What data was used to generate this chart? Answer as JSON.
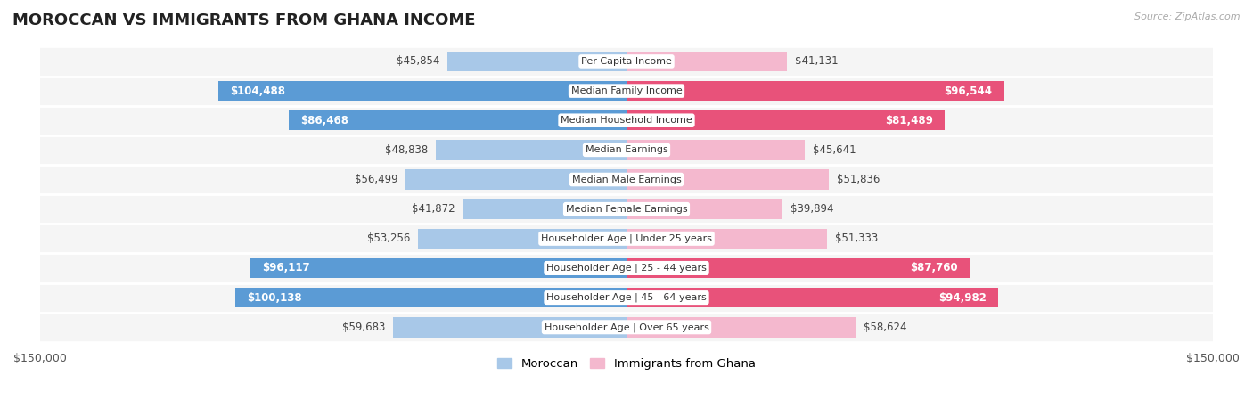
{
  "title": "MOROCCAN VS IMMIGRANTS FROM GHANA INCOME",
  "source": "Source: ZipAtlas.com",
  "categories": [
    "Per Capita Income",
    "Median Family Income",
    "Median Household Income",
    "Median Earnings",
    "Median Male Earnings",
    "Median Female Earnings",
    "Householder Age | Under 25 years",
    "Householder Age | 25 - 44 years",
    "Householder Age | 45 - 64 years",
    "Householder Age | Over 65 years"
  ],
  "moroccan_values": [
    45854,
    104488,
    86468,
    48838,
    56499,
    41872,
    53256,
    96117,
    100138,
    59683
  ],
  "ghana_values": [
    41131,
    96544,
    81489,
    45641,
    51836,
    39894,
    51333,
    87760,
    94982,
    58624
  ],
  "moroccan_labels": [
    "$45,854",
    "$104,488",
    "$86,468",
    "$48,838",
    "$56,499",
    "$41,872",
    "$53,256",
    "$96,117",
    "$100,138",
    "$59,683"
  ],
  "ghana_labels": [
    "$41,131",
    "$96,544",
    "$81,489",
    "$45,641",
    "$51,836",
    "$39,894",
    "$51,333",
    "$87,760",
    "$94,982",
    "$58,624"
  ],
  "moroccan_color_light": "#a8c8e8",
  "moroccan_color_dark": "#5b9bd5",
  "ghana_color_light": "#f4b8ce",
  "ghana_color_dark": "#e8527a",
  "max_value": 150000,
  "bar_height": 0.68,
  "background_color": "#ffffff",
  "row_bg_light": "#f5f5f5",
  "row_bg_dark": "#ebebeb",
  "legend_moroccan": "Moroccan",
  "legend_ghana": "Immigrants from Ghana",
  "x_label_left": "$150,000",
  "x_label_right": "$150,000",
  "inside_label_threshold": 75000,
  "label_fontsize": 8.5,
  "category_fontsize": 8.0,
  "title_fontsize": 13
}
